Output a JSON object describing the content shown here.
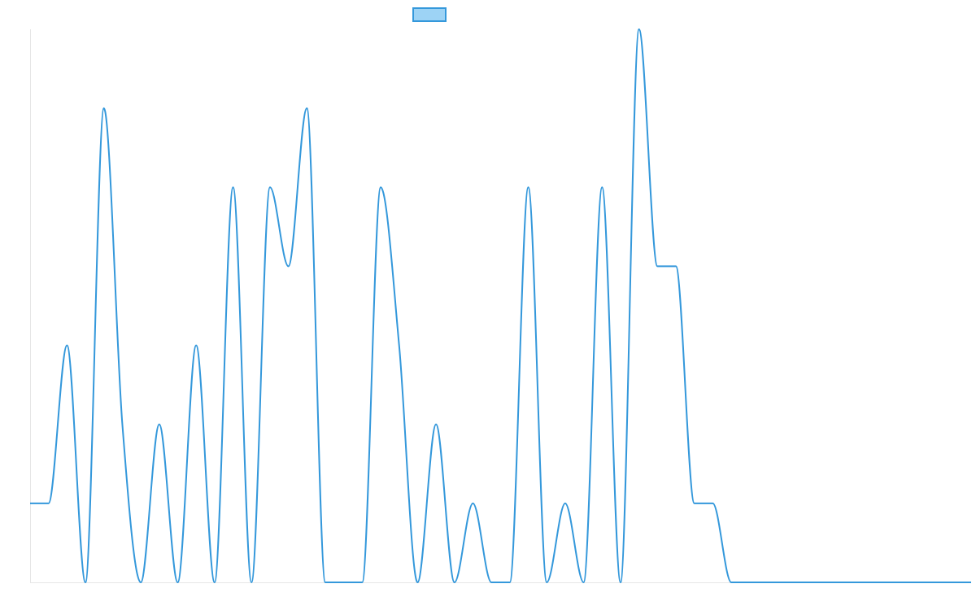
{
  "chart_data": {
    "type": "line",
    "title": "",
    "xlabel": "",
    "ylabel": "",
    "grid": false,
    "legend": "top-center",
    "colors": {
      "line": "#3498db",
      "legend_fill": "#9dd3f5",
      "axis": "#e6e6e6"
    },
    "x": [
      0,
      1,
      2,
      3,
      4,
      5,
      6,
      7,
      8,
      9,
      10,
      11,
      12,
      13,
      14,
      15,
      16,
      17,
      18,
      19,
      20,
      21,
      22,
      23,
      24,
      25,
      26,
      27,
      28,
      29,
      30,
      31,
      32,
      33,
      34,
      35,
      36,
      37,
      38,
      39,
      40,
      41,
      42,
      43,
      44,
      45,
      46,
      47,
      48,
      49,
      50,
      51
    ],
    "ylim": [
      0,
      7
    ],
    "series": [
      {
        "values": [
          1,
          1,
          3,
          0,
          6,
          2,
          0,
          2,
          0,
          3,
          0,
          5,
          0,
          5,
          4,
          6,
          0,
          0,
          0,
          5,
          3,
          0,
          2,
          0,
          1,
          0,
          0,
          5,
          0,
          1,
          0,
          5,
          0,
          7,
          4,
          4,
          1,
          1,
          0,
          0,
          0,
          0,
          0,
          0,
          0,
          0,
          0,
          0,
          0,
          0,
          0,
          0
        ]
      }
    ]
  }
}
